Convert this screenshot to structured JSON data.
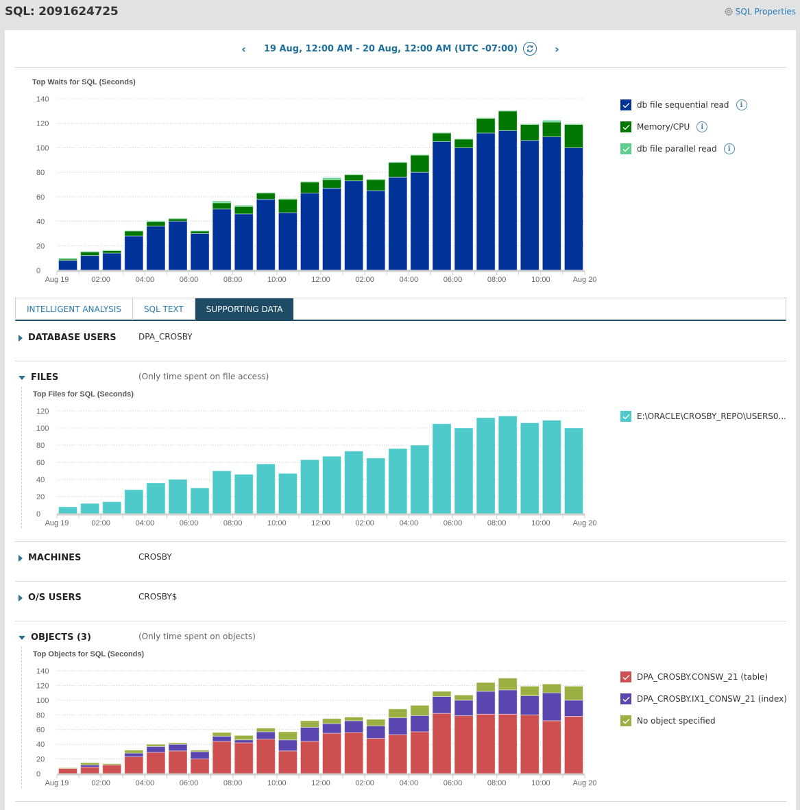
{
  "header": {
    "title": "SQL: 2091624725",
    "properties_link": "SQL Properties",
    "properties_icon": "gear-icon"
  },
  "daterange": {
    "label": "19 Aug, 12:00 AM - 20 Aug, 12:00 AM (UTC -07:00)",
    "prev_icon": "chevron-left-icon",
    "next_icon": "chevron-right-icon",
    "refresh_icon": "refresh-icon"
  },
  "tabs": [
    {
      "label": "INTELLIGENT ANALYSIS",
      "active": false
    },
    {
      "label": "SQL TEXT",
      "active": false
    },
    {
      "label": "SUPPORTING DATA",
      "active": true
    }
  ],
  "sections": {
    "database_users": {
      "label": "DATABASE USERS",
      "value": "DPA_CROSBY",
      "expanded": false
    },
    "files": {
      "label": "FILES",
      "note": "(Only time spent on file access)",
      "expanded": true
    },
    "machines": {
      "label": "MACHINES",
      "value": "CROSBY",
      "expanded": false
    },
    "os_users": {
      "label": "O/S USERS",
      "value": "CROSBY$",
      "expanded": false
    },
    "objects": {
      "label": "OBJECTS (3)",
      "note": "(Only time spent on objects)",
      "expanded": true
    }
  },
  "legends": {
    "waits": [
      {
        "label": "db file sequential read",
        "color": "#003399",
        "info": true
      },
      {
        "label": "Memory/CPU",
        "color": "#007700",
        "info": true
      },
      {
        "label": "db file parallel read",
        "color": "#5cd08a",
        "info": true
      }
    ],
    "files": [
      {
        "label": "E:\\ORACLE\\CROSBY_REPO\\USERS0...",
        "color": "#4ecacb"
      }
    ],
    "objects": [
      {
        "label": "DPA_CROSBY.CONSW_21 (table)",
        "color": "#cd4f4f"
      },
      {
        "label": "DPA_CROSBY.IX1_CONSW_21 (index)",
        "color": "#5b46b0"
      },
      {
        "label": "No object specified",
        "color": "#9ab042"
      }
    ]
  },
  "chart_data": [
    {
      "id": "waits",
      "type": "bar",
      "stacked": true,
      "title": "Top Waits for SQL (Seconds)",
      "xlabel": "",
      "ylabel": "",
      "ylim": [
        0,
        140
      ],
      "yticks": [
        0,
        20,
        40,
        60,
        80,
        100,
        120,
        140
      ],
      "xtick_labels": [
        "Aug 19",
        "02:00",
        "04:00",
        "06:00",
        "08:00",
        "10:00",
        "12:00",
        "02:00",
        "04:00",
        "06:00",
        "08:00",
        "10:00",
        "Aug 20"
      ],
      "grid": true,
      "legend": "right",
      "bar_count": 24,
      "series": [
        {
          "name": "db file sequential read",
          "color": "#003399",
          "values": [
            8,
            12,
            14,
            28,
            36,
            40,
            30,
            50,
            46,
            58,
            47,
            63,
            67,
            73,
            65,
            76,
            80,
            105,
            100,
            112,
            114,
            106,
            109,
            100
          ]
        },
        {
          "name": "Memory/CPU",
          "color": "#007700",
          "values": [
            1,
            3,
            2,
            4,
            3.5,
            2,
            2,
            5,
            6,
            5,
            11,
            9,
            7,
            5,
            9,
            12,
            14,
            7,
            7,
            12,
            16,
            13,
            12,
            19
          ]
        },
        {
          "name": "db file parallel read",
          "color": "#5cd08a",
          "values": [
            1,
            0.5,
            0.5,
            0.5,
            1,
            0.5,
            0.5,
            1.5,
            1,
            0.5,
            0.5,
            0.5,
            1.5,
            0.5,
            0.5,
            0.5,
            0.5,
            0.5,
            0.5,
            0.5,
            0.5,
            0.5,
            1.5,
            0.5
          ]
        }
      ]
    },
    {
      "id": "files",
      "type": "bar",
      "stacked": false,
      "title": "Top Files for SQL (Seconds)",
      "xlabel": "",
      "ylabel": "",
      "ylim": [
        0,
        120
      ],
      "yticks": [
        0,
        20,
        40,
        60,
        80,
        100,
        120
      ],
      "xtick_labels": [
        "Aug 19",
        "02:00",
        "04:00",
        "06:00",
        "08:00",
        "10:00",
        "12:00",
        "02:00",
        "04:00",
        "06:00",
        "08:00",
        "10:00",
        "Aug 20"
      ],
      "grid": true,
      "legend": "right",
      "bar_count": 24,
      "series": [
        {
          "name": "E:\\ORACLE\\CROSBY_REPO\\USERS0...",
          "color": "#4ecacb",
          "values": [
            8,
            12,
            14,
            28,
            36,
            40,
            30,
            50,
            46,
            58,
            47,
            63,
            67,
            73,
            65,
            76,
            80,
            105,
            100,
            112,
            114,
            106,
            109,
            100
          ]
        }
      ]
    },
    {
      "id": "objects",
      "type": "bar",
      "stacked": true,
      "title": "Top Objects for SQL (Seconds)",
      "xlabel": "",
      "ylabel": "",
      "ylim": [
        0,
        140
      ],
      "yticks": [
        0,
        20,
        40,
        60,
        80,
        100,
        120,
        140
      ],
      "xtick_labels": [
        "Aug 19",
        "02:00",
        "04:00",
        "06:00",
        "08:00",
        "10:00",
        "12:00",
        "02:00",
        "04:00",
        "06:00",
        "08:00",
        "10:00",
        "Aug 20"
      ],
      "grid": true,
      "legend": "right",
      "bar_count": 24,
      "series": [
        {
          "name": "DPA_CROSBY.CONSW_21 (table)",
          "color": "#cd4f4f",
          "values": [
            7,
            9,
            12,
            23,
            29,
            31,
            20,
            44,
            42,
            47,
            31,
            44,
            55,
            56,
            48,
            53,
            57,
            82,
            79,
            81,
            81,
            80,
            72,
            78
          ]
        },
        {
          "name": "DPA_CROSBY.IX1_CONSW_21 (index)",
          "color": "#5b46b0",
          "values": [
            0,
            3,
            0,
            5,
            8,
            9,
            10,
            7,
            4,
            10,
            15,
            19,
            13,
            16,
            17,
            23,
            22,
            23,
            21,
            31,
            33,
            26,
            38,
            22
          ]
        },
        {
          "name": "No object specified",
          "color": "#9ab042",
          "values": [
            1,
            3,
            1.5,
            4,
            3,
            2,
            2,
            5,
            6,
            5,
            11,
            9,
            7,
            5,
            9,
            12,
            14,
            7,
            7,
            12,
            16,
            13,
            12,
            19
          ]
        }
      ]
    }
  ]
}
